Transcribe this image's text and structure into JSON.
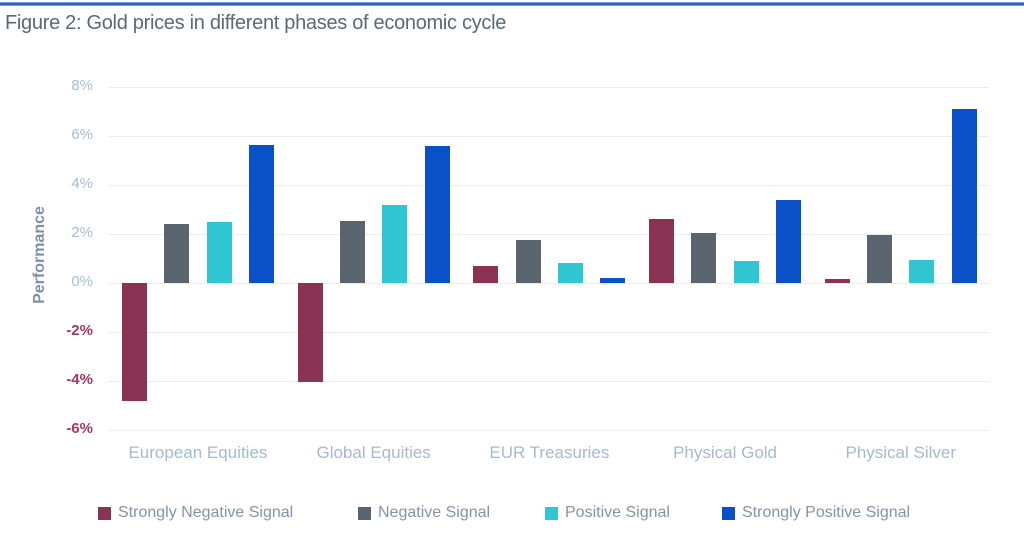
{
  "title": "Figure 2: Gold prices in different phases of economic cycle",
  "colors": {
    "accent_top_line": "#2E5CC5",
    "strongly_negative_signal": "#8B3355",
    "negative_signal": "#5A646E",
    "positive_signal": "#30C5D2",
    "strongly_positive_signal": "#0A50C8",
    "ytick_positive_text": "#A6BDD4",
    "ytick_negative_text": "#A1395F",
    "category_label_text": "#A4BAD1",
    "legend_label_text": "#8294A8",
    "gridline": "#ECECEC",
    "title_text": "#5A6974"
  },
  "chart_data": {
    "type": "bar",
    "title": "Figure 2: Gold prices in different phases of economic cycle",
    "xlabel": "",
    "ylabel": "Performance",
    "ylim": [
      -6,
      8
    ],
    "ytick_step": 2,
    "ytick_labels": [
      "8%",
      "6%",
      "4%",
      "2%",
      "0%",
      "-2%",
      "-4%",
      "-6%"
    ],
    "grid": true,
    "legend_position": "bottom",
    "categories": [
      "European Equities",
      "Global Equities",
      "EUR Treasuries",
      "Physical Gold",
      "Physical Silver"
    ],
    "series": [
      {
        "name": "Strongly Negative Signal",
        "color": "#8B3355",
        "values": [
          -4.8,
          -4.05,
          0.7,
          2.6,
          0.15
        ]
      },
      {
        "name": "Negative Signal",
        "color": "#5A646E",
        "values": [
          2.4,
          2.55,
          1.75,
          2.05,
          1.95
        ]
      },
      {
        "name": "Positive Signal",
        "color": "#30C5D2",
        "values": [
          2.5,
          3.2,
          0.8,
          0.9,
          0.95
        ]
      },
      {
        "name": "Strongly Positive Signal",
        "color": "#0A50C8",
        "values": [
          5.65,
          5.6,
          0.2,
          3.4,
          7.1
        ]
      }
    ]
  }
}
